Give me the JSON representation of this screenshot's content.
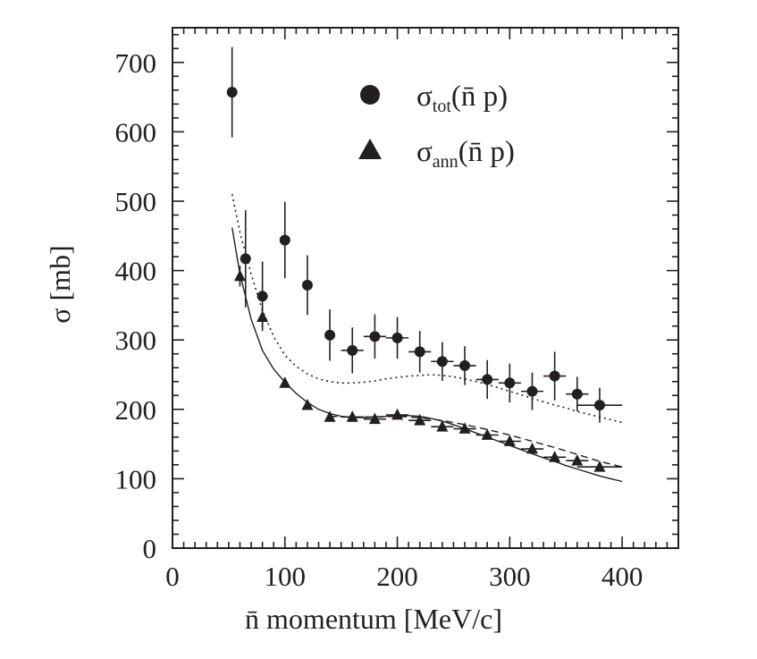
{
  "chart_data": {
    "type": "scatter",
    "title": "",
    "xlabel": "n̄ momentum [MeV/c]",
    "ylabel": "σ [mb]",
    "xlim": [
      0,
      450
    ],
    "ylim": [
      0,
      750
    ],
    "xticks": [
      0,
      100,
      200,
      300,
      400
    ],
    "yticks": [
      0,
      100,
      200,
      300,
      400,
      500,
      600,
      700
    ],
    "grid": false,
    "legend_position": "top-right",
    "series": [
      {
        "name": "σ_tot(n̄ p)",
        "legend": {
          "symbol": "σ",
          "sub": "tot",
          "rest": "(n̄ p)"
        },
        "marker": "circle",
        "points": [
          {
            "x": 53,
            "y": 657,
            "yerr": 65,
            "xerr": 0
          },
          {
            "x": 65,
            "y": 417,
            "yerr": 70,
            "xerr": 0
          },
          {
            "x": 80,
            "y": 363,
            "yerr": 50,
            "xerr": 0
          },
          {
            "x": 100,
            "y": 444,
            "yerr": 55,
            "xerr": 0
          },
          {
            "x": 120,
            "y": 379,
            "yerr": 43,
            "xerr": 0
          },
          {
            "x": 140,
            "y": 307,
            "yerr": 37,
            "xerr": 0
          },
          {
            "x": 160,
            "y": 285,
            "yerr": 33,
            "xerr": 10
          },
          {
            "x": 180,
            "y": 305,
            "yerr": 32,
            "xerr": 10
          },
          {
            "x": 200,
            "y": 303,
            "yerr": 30,
            "xerr": 10
          },
          {
            "x": 220,
            "y": 283,
            "yerr": 30,
            "xerr": 10
          },
          {
            "x": 240,
            "y": 269,
            "yerr": 28,
            "xerr": 10
          },
          {
            "x": 260,
            "y": 263,
            "yerr": 28,
            "xerr": 10
          },
          {
            "x": 280,
            "y": 243,
            "yerr": 28,
            "xerr": 10
          },
          {
            "x": 300,
            "y": 238,
            "yerr": 28,
            "xerr": 10
          },
          {
            "x": 320,
            "y": 226,
            "yerr": 27,
            "xerr": 10
          },
          {
            "x": 340,
            "y": 248,
            "yerr": 35,
            "xerr": 10
          },
          {
            "x": 360,
            "y": 222,
            "yerr": 25,
            "xerr": 10
          },
          {
            "x": 380,
            "y": 206,
            "yerr": 25,
            "xerr": 20
          }
        ]
      },
      {
        "name": "σ_ann(n̄ p)",
        "legend": {
          "symbol": "σ",
          "sub": "ann",
          "rest": "(n̄ p)"
        },
        "marker": "triangle",
        "points": [
          {
            "x": 60,
            "y": 392,
            "yerr": 15,
            "xerr": 0
          },
          {
            "x": 80,
            "y": 333,
            "yerr": 15,
            "xerr": 0
          },
          {
            "x": 100,
            "y": 238,
            "yerr": 6,
            "xerr": 0
          },
          {
            "x": 120,
            "y": 206,
            "yerr": 4,
            "xerr": 0
          },
          {
            "x": 140,
            "y": 189,
            "yerr": 4,
            "xerr": 0
          },
          {
            "x": 160,
            "y": 189,
            "yerr": 4,
            "xerr": 10
          },
          {
            "x": 180,
            "y": 186,
            "yerr": 4,
            "xerr": 10
          },
          {
            "x": 200,
            "y": 192,
            "yerr": 4,
            "xerr": 10
          },
          {
            "x": 220,
            "y": 184,
            "yerr": 4,
            "xerr": 10
          },
          {
            "x": 240,
            "y": 175,
            "yerr": 4,
            "xerr": 10
          },
          {
            "x": 260,
            "y": 172,
            "yerr": 4,
            "xerr": 10
          },
          {
            "x": 280,
            "y": 163,
            "yerr": 4,
            "xerr": 10
          },
          {
            "x": 300,
            "y": 154,
            "yerr": 4,
            "xerr": 10
          },
          {
            "x": 320,
            "y": 143,
            "yerr": 4,
            "xerr": 10
          },
          {
            "x": 340,
            "y": 131,
            "yerr": 4,
            "xerr": 10
          },
          {
            "x": 360,
            "y": 126,
            "yerr": 4,
            "xerr": 10
          },
          {
            "x": 380,
            "y": 117,
            "yerr": 4,
            "xerr": 20
          }
        ]
      }
    ],
    "curves": [
      {
        "name": "dotted-model-curve",
        "style": "dotted",
        "points": [
          [
            53,
            510
          ],
          [
            60,
            455
          ],
          [
            70,
            395
          ],
          [
            80,
            343
          ],
          [
            90,
            305
          ],
          [
            100,
            278
          ],
          [
            110,
            262
          ],
          [
            120,
            251
          ],
          [
            130,
            244
          ],
          [
            140,
            240
          ],
          [
            150,
            238
          ],
          [
            160,
            238
          ],
          [
            170,
            239
          ],
          [
            180,
            241
          ],
          [
            190,
            244
          ],
          [
            200,
            246
          ],
          [
            210,
            248
          ],
          [
            220,
            249
          ],
          [
            230,
            250
          ],
          [
            240,
            249
          ],
          [
            250,
            247
          ],
          [
            260,
            244
          ],
          [
            270,
            240
          ],
          [
            280,
            236
          ],
          [
            290,
            231
          ],
          [
            300,
            226
          ],
          [
            310,
            221
          ],
          [
            320,
            216
          ],
          [
            330,
            211
          ],
          [
            340,
            206
          ],
          [
            350,
            202
          ],
          [
            360,
            197
          ],
          [
            370,
            193
          ],
          [
            380,
            189
          ],
          [
            390,
            185
          ],
          [
            400,
            181
          ]
        ]
      },
      {
        "name": "solid-model-curve",
        "style": "solid",
        "points": [
          [
            53,
            462
          ],
          [
            60,
            395
          ],
          [
            70,
            330
          ],
          [
            80,
            285
          ],
          [
            90,
            258
          ],
          [
            100,
            239
          ],
          [
            110,
            223
          ],
          [
            120,
            210
          ],
          [
            130,
            200
          ],
          [
            140,
            194
          ],
          [
            150,
            190
          ],
          [
            160,
            188
          ],
          [
            170,
            188
          ],
          [
            180,
            189
          ],
          [
            190,
            190
          ],
          [
            200,
            191
          ],
          [
            210,
            191
          ],
          [
            220,
            190
          ],
          [
            230,
            187
          ],
          [
            240,
            183
          ],
          [
            250,
            178
          ],
          [
            260,
            172
          ],
          [
            270,
            166
          ],
          [
            280,
            160
          ],
          [
            290,
            154
          ],
          [
            300,
            148
          ],
          [
            310,
            142
          ],
          [
            320,
            136
          ],
          [
            330,
            130
          ],
          [
            340,
            125
          ],
          [
            350,
            119
          ],
          [
            360,
            114
          ],
          [
            370,
            109
          ],
          [
            380,
            104
          ],
          [
            390,
            100
          ],
          [
            400,
            96
          ]
        ]
      },
      {
        "name": "dashed-model-curve",
        "style": "dashed",
        "points": [
          [
            140,
            190
          ],
          [
            160,
            189
          ],
          [
            180,
            189
          ],
          [
            200,
            190
          ],
          [
            220,
            188
          ],
          [
            240,
            184
          ],
          [
            260,
            178
          ],
          [
            280,
            171
          ],
          [
            300,
            163
          ],
          [
            320,
            154
          ],
          [
            340,
            145
          ],
          [
            360,
            135
          ],
          [
            380,
            125
          ],
          [
            400,
            117
          ]
        ]
      }
    ]
  }
}
